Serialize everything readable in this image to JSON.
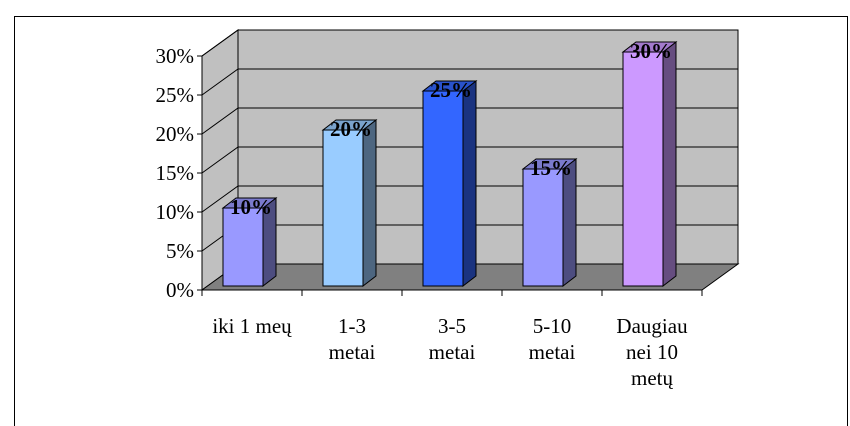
{
  "chart_data": {
    "type": "bar",
    "title": "",
    "xlabel": "",
    "ylabel": "",
    "ylim": [
      0,
      30
    ],
    "yticks": [
      "0%",
      "5%",
      "10%",
      "15%",
      "20%",
      "25%",
      "30%"
    ],
    "grid": true,
    "legend": "none",
    "categories": [
      [
        "iki 1 meų"
      ],
      [
        "1-3",
        "metai"
      ],
      [
        "3-5",
        "metai"
      ],
      [
        "5-10",
        "metai"
      ],
      [
        "Daugiau",
        "nei 10",
        "metų"
      ]
    ],
    "values": [
      10,
      20,
      25,
      15,
      30
    ],
    "data_labels": [
      "10%",
      "20%",
      "25%",
      "15%",
      "30%"
    ],
    "colors": {
      "bars_front": [
        "#9999ff",
        "#99ccff",
        "#3366ff",
        "#9999ff",
        "#cc99ff"
      ],
      "bars_side": [
        "#4d4d80",
        "#4d6680",
        "#1a3380",
        "#4d4d80",
        "#664d80"
      ],
      "bars_top": [
        "#7a7acc",
        "#7aa3cc",
        "#2952cc",
        "#7a7acc",
        "#a37acc"
      ],
      "wall": "#c0c0c0",
      "floor": "#808080"
    }
  }
}
